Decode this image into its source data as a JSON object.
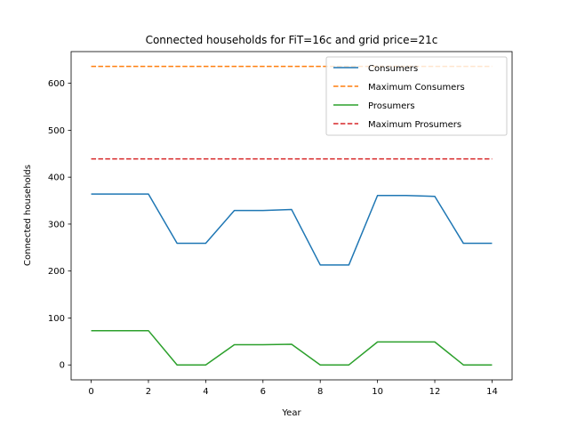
{
  "chart_data": {
    "type": "line",
    "title": "Connected households for FiT=16c and grid price=21c",
    "xlabel": "Year",
    "ylabel": "Connected households",
    "xlim": [
      -0.7,
      14.7
    ],
    "ylim": [
      -31.8,
      667.5
    ],
    "x_ticks": [
      0,
      2,
      4,
      6,
      8,
      10,
      12,
      14
    ],
    "y_ticks": [
      0,
      100,
      200,
      300,
      400,
      500,
      600
    ],
    "grid": false,
    "legend_position": "upper right",
    "x": [
      0,
      1,
      2,
      3,
      4,
      5,
      6,
      7,
      8,
      9,
      10,
      11,
      12,
      13,
      14
    ],
    "series": [
      {
        "name": "Consumers",
        "color": "#1f77b4",
        "dash": "solid",
        "values": [
          364,
          364,
          364,
          259,
          259,
          329,
          329,
          331,
          213,
          213,
          361,
          361,
          359,
          259,
          259
        ]
      },
      {
        "name": "Maximum Consumers",
        "color": "#ff7f0e",
        "dash": "dashed",
        "values": [
          636,
          636,
          636,
          636,
          636,
          636,
          636,
          636,
          636,
          636,
          636,
          636,
          636,
          636,
          636
        ]
      },
      {
        "name": "Prosumers",
        "color": "#2ca02c",
        "dash": "solid",
        "values": [
          73,
          73,
          73,
          0,
          0,
          43,
          43,
          44,
          0,
          0,
          49,
          49,
          49,
          0,
          0
        ]
      },
      {
        "name": "Maximum Prosumers",
        "color": "#d62728",
        "dash": "dashed",
        "values": [
          439,
          439,
          439,
          439,
          439,
          439,
          439,
          439,
          439,
          439,
          439,
          439,
          439,
          439,
          439
        ]
      }
    ]
  }
}
